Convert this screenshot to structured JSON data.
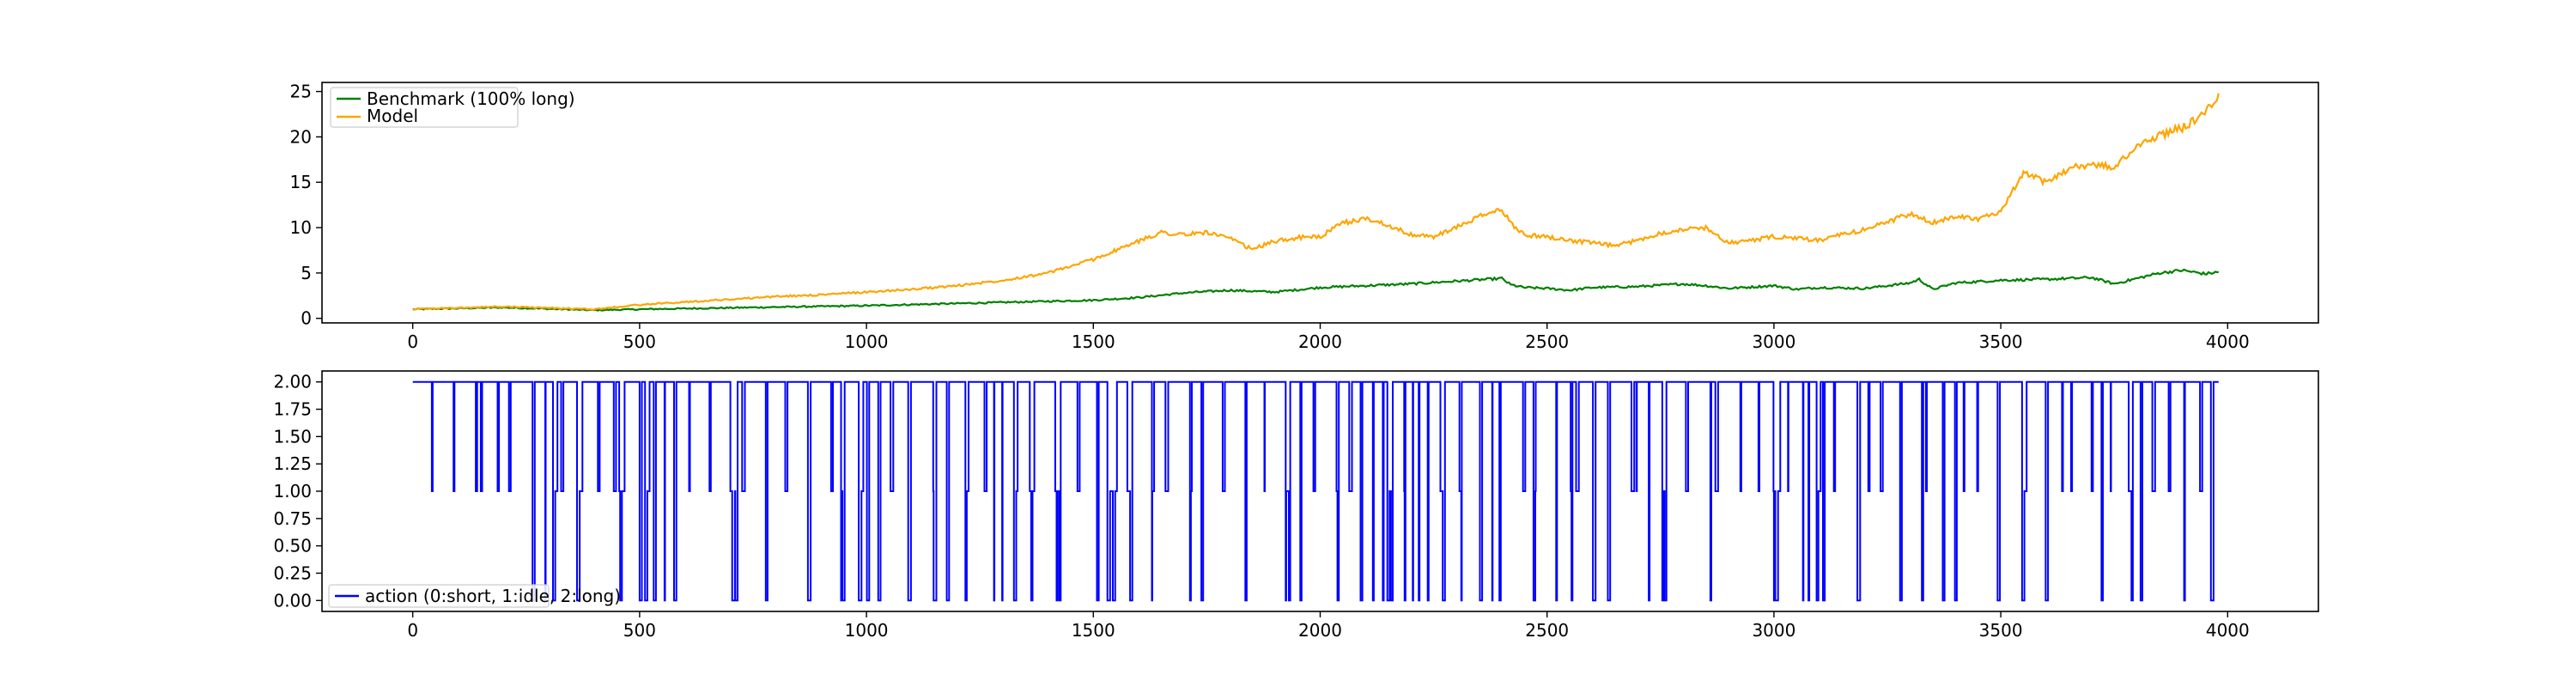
{
  "chart_data": [
    {
      "type": "line",
      "title": "",
      "xlabel": "",
      "ylabel": "",
      "xlim": [
        -200,
        4200
      ],
      "ylim": [
        -0.5,
        26
      ],
      "x_ticks": [
        0,
        500,
        1000,
        1500,
        2000,
        2500,
        3000,
        3500,
        4000
      ],
      "y_ticks": [
        0,
        5,
        10,
        15,
        20,
        25
      ],
      "grid": false,
      "legend_position": "upper left",
      "series": [
        {
          "name": "Benchmark (100% long)",
          "color": "#008000",
          "x": [
            0,
            200,
            400,
            500,
            1000,
            1500,
            1600,
            1700,
            1800,
            1900,
            2000,
            2100,
            2200,
            2300,
            2400,
            2420,
            2450,
            2500,
            2550,
            2600,
            2700,
            2800,
            2850,
            2900,
            3000,
            3050,
            3100,
            3200,
            3300,
            3320,
            3350,
            3400,
            3500,
            3600,
            3700,
            3750,
            3800,
            3850,
            3900,
            3950,
            3980
          ],
          "y": [
            1,
            1.2,
            0.9,
            1.0,
            1.4,
            2.0,
            2.3,
            2.8,
            3.1,
            2.9,
            3.4,
            3.6,
            3.8,
            4.1,
            4.4,
            3.7,
            3.4,
            3.3,
            3.1,
            3.4,
            3.5,
            3.8,
            3.6,
            3.3,
            3.6,
            3.2,
            3.4,
            3.3,
            3.9,
            4.3,
            3.2,
            3.9,
            4.2,
            4.3,
            4.5,
            3.8,
            4.4,
            5.0,
            5.3,
            4.9,
            5.1
          ]
        },
        {
          "name": "Model",
          "color": "#ffa500",
          "x": [
            0,
            200,
            400,
            500,
            600,
            700,
            800,
            900,
            1000,
            1100,
            1200,
            1300,
            1400,
            1500,
            1550,
            1600,
            1650,
            1700,
            1750,
            1800,
            1850,
            1900,
            1950,
            2000,
            2050,
            2100,
            2150,
            2200,
            2250,
            2300,
            2350,
            2400,
            2420,
            2450,
            2500,
            2550,
            2600,
            2650,
            2700,
            2750,
            2800,
            2850,
            2900,
            2950,
            3000,
            3050,
            3100,
            3200,
            3300,
            3350,
            3400,
            3450,
            3500,
            3520,
            3550,
            3600,
            3650,
            3700,
            3750,
            3800,
            3850,
            3900,
            3950,
            3980
          ],
          "y": [
            1,
            1.3,
            1.0,
            1.5,
            1.8,
            2.1,
            2.4,
            2.6,
            2.9,
            3.2,
            3.6,
            4.2,
            5.0,
            6.5,
            7.5,
            8.5,
            9.5,
            9.2,
            9.5,
            8.8,
            7.6,
            8.5,
            8.9,
            9.0,
            10.5,
            11.0,
            10.3,
            9.2,
            9.0,
            10.0,
            11.2,
            12.0,
            10.5,
            9.2,
            9.0,
            8.6,
            8.3,
            8.0,
            8.6,
            9.4,
            9.8,
            10.0,
            8.3,
            8.6,
            9.0,
            8.8,
            8.6,
            9.8,
            11.5,
            10.5,
            11.3,
            11.0,
            11.6,
            13.5,
            16.0,
            15.0,
            16.5,
            17.0,
            16.6,
            19.0,
            20.2,
            21.0,
            22.5,
            24.8
          ]
        }
      ]
    },
    {
      "type": "line",
      "title": "",
      "xlabel": "",
      "ylabel": "",
      "xlim": [
        -200,
        4200
      ],
      "ylim": [
        -0.1,
        2.1
      ],
      "x_ticks": [
        0,
        500,
        1000,
        1500,
        2000,
        2500,
        3000,
        3500,
        4000
      ],
      "y_ticks": [
        0.0,
        0.25,
        0.5,
        0.75,
        1.0,
        1.25,
        1.5,
        1.75,
        2.0
      ],
      "y_tick_labels": [
        "0.00",
        "0.25",
        "0.50",
        "0.75",
        "1.00",
        "1.25",
        "1.50",
        "1.75",
        "2.00"
      ],
      "grid": false,
      "legend_position": "lower left",
      "drawstyle": "steps",
      "n_steps": 3980,
      "values_domain": [
        0,
        1,
        2
      ],
      "series": [
        {
          "name": "action (0:short, 1:idle, 2:long)",
          "color": "#0000ff"
        }
      ]
    }
  ]
}
